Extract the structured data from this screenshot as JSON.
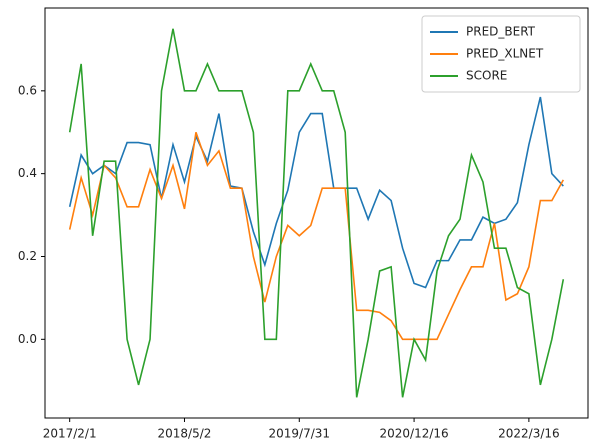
{
  "chart_data": {
    "type": "line",
    "categories": [
      "2017/2/1",
      null,
      null,
      null,
      null,
      null,
      null,
      null,
      null,
      null,
      "2018/5/2",
      null,
      null,
      null,
      null,
      null,
      null,
      null,
      null,
      null,
      "2019/7/31",
      null,
      null,
      null,
      null,
      null,
      null,
      null,
      null,
      null,
      "2020/12/16",
      null,
      null,
      null,
      null,
      null,
      null,
      null,
      null,
      null,
      "2022/3/16",
      null,
      null,
      null
    ],
    "series": [
      {
        "name": "PRED_BERT",
        "color": "#1f77b4",
        "values": [
          0.32,
          0.445,
          0.4,
          0.42,
          0.4,
          0.475,
          0.475,
          0.47,
          0.34,
          0.47,
          0.38,
          0.49,
          0.43,
          0.545,
          0.37,
          0.365,
          0.26,
          0.18,
          0.28,
          0.36,
          0.5,
          0.545,
          0.545,
          0.365,
          0.365,
          0.365,
          0.29,
          0.36,
          0.335,
          0.22,
          0.135,
          0.125,
          0.19,
          0.19,
          0.24,
          0.24,
          0.295,
          0.28,
          0.29,
          0.33,
          0.47,
          0.585,
          0.4,
          0.37
        ]
      },
      {
        "name": "PRED_XLNET",
        "color": "#ff7f0e",
        "values": [
          0.265,
          0.39,
          0.3,
          0.42,
          0.39,
          0.32,
          0.32,
          0.41,
          0.34,
          0.42,
          0.315,
          0.5,
          0.42,
          0.455,
          0.365,
          0.365,
          0.2,
          0.09,
          0.2,
          0.275,
          0.25,
          0.275,
          0.365,
          0.365,
          0.365,
          0.07,
          0.07,
          0.065,
          0.045,
          0.0,
          0.0,
          0.0,
          0.0,
          0.06,
          0.12,
          0.175,
          0.175,
          0.28,
          0.095,
          0.11,
          0.175,
          0.335,
          0.335,
          0.385
        ]
      },
      {
        "name": "SCORE",
        "color": "#2ca02c",
        "values": [
          0.5,
          0.665,
          0.25,
          0.43,
          0.43,
          0.0,
          -0.11,
          0.0,
          0.6,
          0.75,
          0.6,
          0.6,
          0.665,
          0.6,
          0.6,
          0.6,
          0.5,
          0.0,
          0.0,
          0.6,
          0.6,
          0.665,
          0.6,
          0.6,
          0.5,
          -0.14,
          0.0,
          0.165,
          0.175,
          -0.14,
          0.0,
          -0.05,
          0.165,
          0.25,
          0.29,
          0.445,
          0.38,
          0.22,
          0.22,
          0.125,
          0.11,
          -0.11,
          0.0,
          0.145
        ]
      }
    ],
    "ylim": [
      -0.19,
      0.8
    ],
    "yticks": [
      {
        "value": 0.0,
        "label": "0.0"
      },
      0.2,
      0.4,
      0.6
    ],
    "legend": "upper right"
  }
}
